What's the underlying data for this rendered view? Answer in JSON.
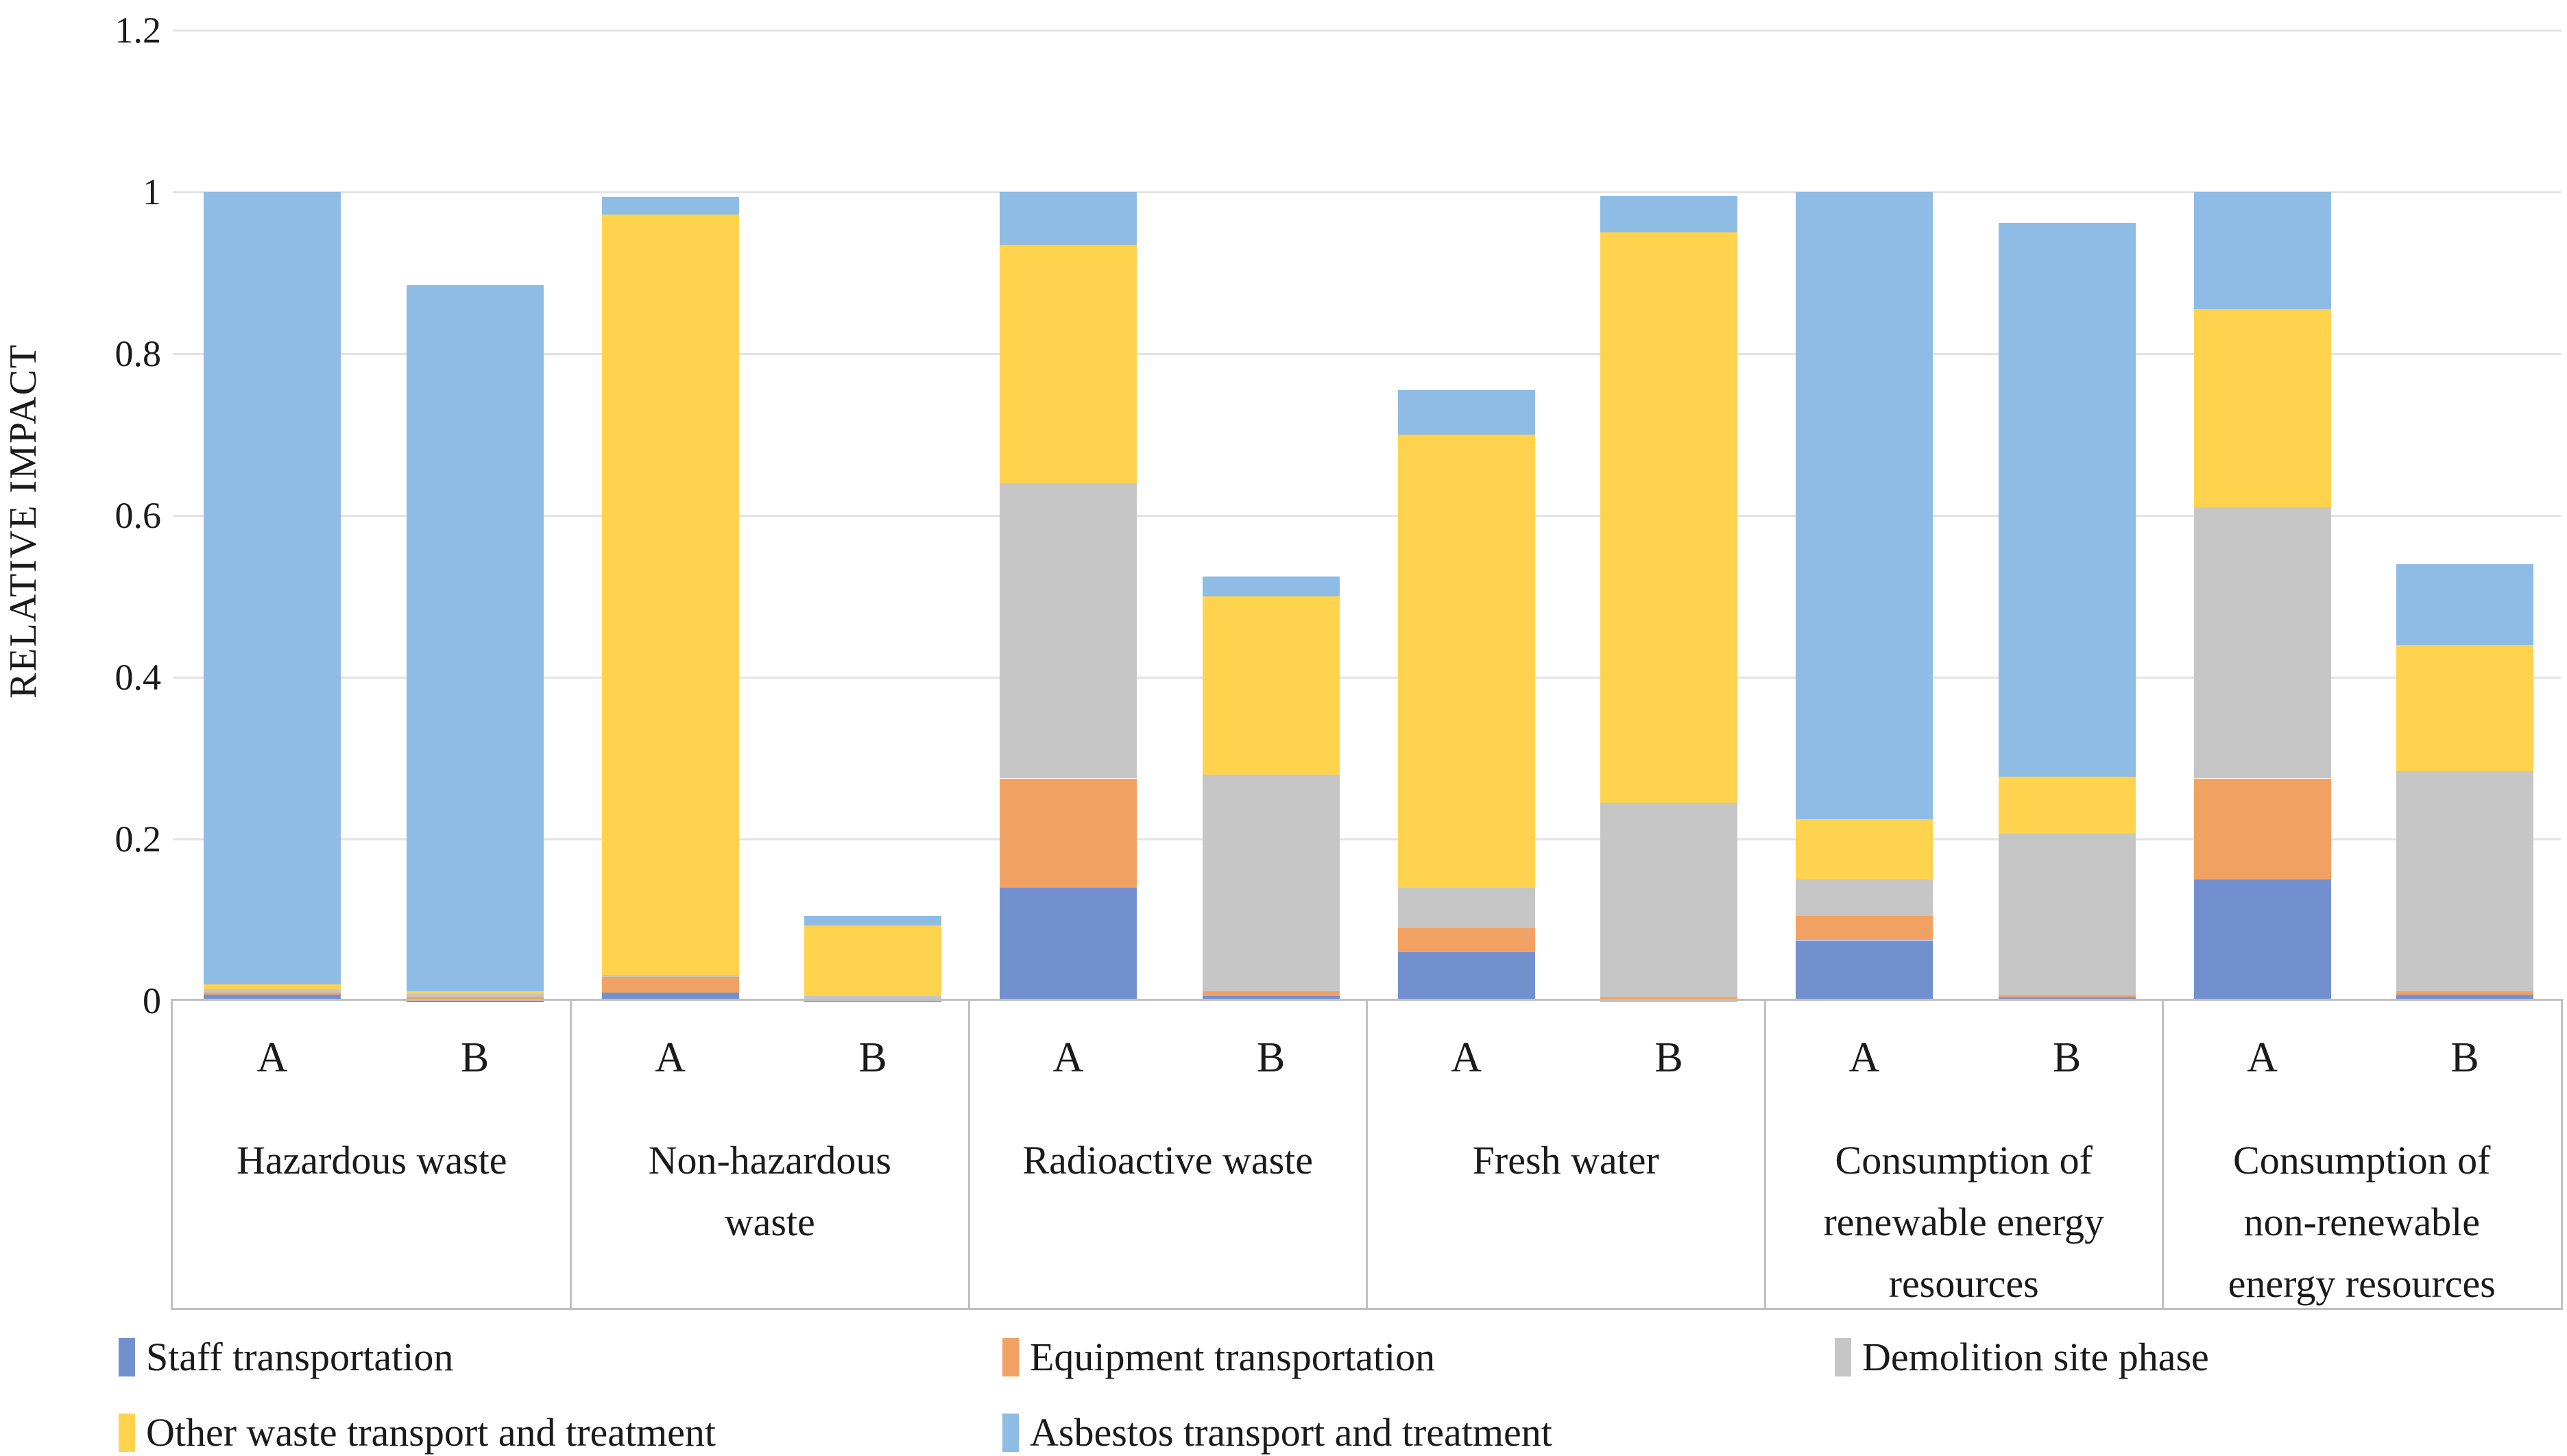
{
  "y_axis": {
    "title": "RELATIVE IMPACT",
    "ticks": [
      {
        "label": "1.2",
        "value": 1.2
      },
      {
        "label": "1",
        "value": 1.0
      },
      {
        "label": "0.8",
        "value": 0.8
      },
      {
        "label": "0.6",
        "value": 0.6
      },
      {
        "label": "0.4",
        "value": 0.4
      },
      {
        "label": "0.2",
        "value": 0.2
      },
      {
        "label": "0",
        "value": 0.0
      }
    ]
  },
  "x_axis": {
    "bar_labels": [
      "A",
      "B"
    ],
    "categories_lines": [
      [
        "Hazardous waste"
      ],
      [
        "Non-hazardous",
        "waste"
      ],
      [
        "Radioactive waste"
      ],
      [
        "Fresh water"
      ],
      [
        "Consumption of",
        "renewable energy",
        "resources"
      ],
      [
        "Consumption of",
        "non-renewable",
        "energy resources"
      ]
    ]
  },
  "legend": {
    "rows": [
      [
        {
          "label": "Staff transportation",
          "color": "#7390CE"
        },
        {
          "label": "Equipment transportation",
          "color": "#F1A263"
        },
        {
          "label": "Demolition site phase",
          "color": "#C6C6C6"
        }
      ],
      [
        {
          "label": "Other waste transport and treatment",
          "color": "#FFD34E"
        },
        {
          "label": "Asbestos transport and treatment",
          "color": "#8FBCE4"
        }
      ]
    ]
  },
  "colors": {
    "gridline": "#e3e3e3",
    "axis_box": "#c0c0c0",
    "text": "#1a1a1a",
    "background": "#ffffff"
  },
  "chart_data": {
    "type": "bar",
    "stacked": true,
    "title": "",
    "xlabel": "",
    "ylabel": "RELATIVE IMPACT",
    "ylim": [
      0,
      1.2
    ],
    "grid": true,
    "legend_position": "bottom",
    "categories": [
      "Hazardous waste",
      "Non-hazardous waste",
      "Radioactive waste",
      "Fresh water",
      "Consumption of renewable energy resources",
      "Consumption of non-renewable energy resources"
    ],
    "bars_per_category": [
      "A",
      "B"
    ],
    "series": [
      {
        "name": "Staff transportation",
        "color": "#7390CE",
        "values": [
          0.008,
          0.001,
          0.01,
          0.001,
          0.14,
          0.006,
          0.06,
          0.002,
          0.075,
          0.004,
          0.15,
          0.008
        ]
      },
      {
        "name": "Equipment transportation",
        "color": "#F1A263",
        "values": [
          0.002,
          0.004,
          0.02,
          0.001,
          0.135,
          0.006,
          0.03,
          0.003,
          0.03,
          0.003,
          0.125,
          0.004
        ]
      },
      {
        "name": "Demolition site phase",
        "color": "#C6C6C6",
        "values": [
          0.004,
          0.006,
          0.002,
          0.004,
          0.365,
          0.268,
          0.05,
          0.24,
          0.045,
          0.2,
          0.335,
          0.272
        ]
      },
      {
        "name": "Other waste transport and treatment",
        "color": "#FFD34E",
        "values": [
          0.006,
          0.001,
          0.94,
          0.087,
          0.295,
          0.22,
          0.56,
          0.705,
          0.075,
          0.07,
          0.245,
          0.156
        ]
      },
      {
        "name": "Asbestos transport and treatment",
        "color": "#8FBCE4",
        "values": [
          0.98,
          0.873,
          0.022,
          0.012,
          0.065,
          0.025,
          0.055,
          0.045,
          0.775,
          0.685,
          0.145,
          0.1
        ]
      }
    ],
    "bar_totals": [
      1.0,
      0.885,
      0.99,
      0.105,
      1.0,
      0.525,
      0.755,
      0.995,
      1.0,
      0.96,
      1.0,
      0.54
    ]
  }
}
